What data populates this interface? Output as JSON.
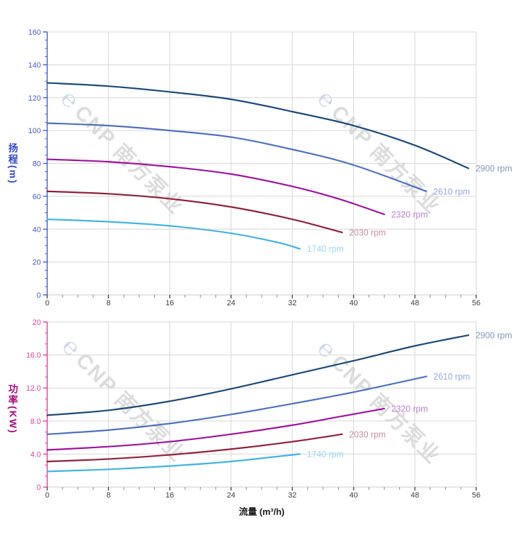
{
  "watermark": {
    "logo_glyph": "℮",
    "text": "CNP 南方泵业"
  },
  "x_axis_title": "流量 (m³/h)",
  "chart_data": [
    {
      "type": "line",
      "title": "",
      "ylabel": "扬程(m)",
      "xlabel": "流量 (m³/h)",
      "x_range": [
        0,
        56
      ],
      "y_range": [
        0,
        160
      ],
      "x_major": 8,
      "x_subdiv": 4,
      "y_major": 20,
      "y_subdiv": 4,
      "x_tick_labels": [
        "0",
        "8",
        "16",
        "24",
        "32",
        "40",
        "48",
        "56"
      ],
      "y_tick_labels": [
        "0",
        "20",
        "40",
        "60",
        "80",
        "100",
        "120",
        "140",
        "160"
      ],
      "grid": true,
      "grid_color": "#d6d6d6",
      "axis_color": "#4558d2",
      "title_color": "#3347cc",
      "legend_position": "right-of-curve-end",
      "series": [
        {
          "name": "2900 rpm",
          "color": "#1b4875",
          "label_color": "#7f9cba",
          "points": [
            [
              0,
              129
            ],
            [
              8,
              127
            ],
            [
              16,
              123.5
            ],
            [
              24,
              119
            ],
            [
              32,
              111.5
            ],
            [
              40,
              103
            ],
            [
              48,
              91
            ],
            [
              55,
              77
            ]
          ]
        },
        {
          "name": "2610 rpm",
          "color": "#4d6fc0",
          "label_color": "#93a9dd",
          "points": [
            [
              0,
              104.5
            ],
            [
              8,
              103
            ],
            [
              16,
              100
            ],
            [
              24,
              96
            ],
            [
              32,
              88.5
            ],
            [
              40,
              79
            ],
            [
              49.5,
              63
            ]
          ]
        },
        {
          "name": "2320 rpm",
          "color": "#9d119b",
          "label_color": "#bb7fd4",
          "points": [
            [
              0,
              82.5
            ],
            [
              8,
              81
            ],
            [
              16,
              78
            ],
            [
              24,
              73.5
            ],
            [
              32,
              66
            ],
            [
              38,
              58.5
            ],
            [
              44,
              49
            ]
          ]
        },
        {
          "name": "2030 rpm",
          "color": "#8f1d3c",
          "label_color": "#c78f9f",
          "points": [
            [
              0,
              63
            ],
            [
              8,
              61.5
            ],
            [
              16,
              58.5
            ],
            [
              24,
              53.5
            ],
            [
              32,
              46
            ],
            [
              38.5,
              38
            ]
          ]
        },
        {
          "name": "1740 rpm",
          "color": "#41b1e4",
          "label_color": "#9ed4f2",
          "points": [
            [
              0,
              46
            ],
            [
              8,
              44.5
            ],
            [
              16,
              42
            ],
            [
              24,
              37.5
            ],
            [
              30,
              32
            ],
            [
              33,
              28
            ]
          ]
        }
      ]
    },
    {
      "type": "line",
      "title": "",
      "ylabel": "功率(KW)",
      "xlabel": "流量 (m³/h)",
      "x_range": [
        0,
        56
      ],
      "y_range": [
        0,
        20
      ],
      "x_major": 8,
      "x_subdiv": 4,
      "y_major": 4,
      "y_subdiv": 3,
      "x_tick_labels": [
        "0",
        "8",
        "16",
        "24",
        "32",
        "40",
        "48",
        "56"
      ],
      "y_tick_labels": [
        "0",
        "4.0",
        "8.0",
        "12.0",
        "16.0",
        "20"
      ],
      "grid": true,
      "grid_color": "#d6d6d6",
      "axis_color": "#e23d96",
      "title_color": "#a80980",
      "legend_position": "right-of-curve-end",
      "series": [
        {
          "name": "2900 rpm",
          "color": "#1b4875",
          "label_color": "#7f9cba",
          "points": [
            [
              0,
              8.7
            ],
            [
              8,
              9.3
            ],
            [
              16,
              10.4
            ],
            [
              24,
              11.9
            ],
            [
              32,
              13.6
            ],
            [
              40,
              15.3
            ],
            [
              48,
              17.1
            ],
            [
              55,
              18.4
            ]
          ]
        },
        {
          "name": "2610 rpm",
          "color": "#4d6fc0",
          "label_color": "#93a9dd",
          "points": [
            [
              0,
              6.4
            ],
            [
              8,
              6.9
            ],
            [
              16,
              7.7
            ],
            [
              24,
              8.8
            ],
            [
              32,
              10.1
            ],
            [
              40,
              11.5
            ],
            [
              49.5,
              13.4
            ]
          ]
        },
        {
          "name": "2320 rpm",
          "color": "#9d119b",
          "label_color": "#bb7fd4",
          "points": [
            [
              0,
              4.5
            ],
            [
              8,
              4.9
            ],
            [
              16,
              5.5
            ],
            [
              24,
              6.4
            ],
            [
              32,
              7.5
            ],
            [
              38,
              8.5
            ],
            [
              44,
              9.5
            ]
          ]
        },
        {
          "name": "2030 rpm",
          "color": "#8f1d3c",
          "label_color": "#c78f9f",
          "points": [
            [
              0,
              3.1
            ],
            [
              8,
              3.4
            ],
            [
              16,
              3.9
            ],
            [
              24,
              4.6
            ],
            [
              32,
              5.5
            ],
            [
              38.5,
              6.4
            ]
          ]
        },
        {
          "name": "1740 rpm",
          "color": "#41b1e4",
          "label_color": "#9ed4f2",
          "points": [
            [
              0,
              1.9
            ],
            [
              8,
              2.15
            ],
            [
              16,
              2.55
            ],
            [
              24,
              3.1
            ],
            [
              30,
              3.7
            ],
            [
              33,
              4.0
            ]
          ]
        }
      ]
    }
  ],
  "x_tick_color": "#3c3c3c",
  "x_title_color": "#1a1a1a"
}
